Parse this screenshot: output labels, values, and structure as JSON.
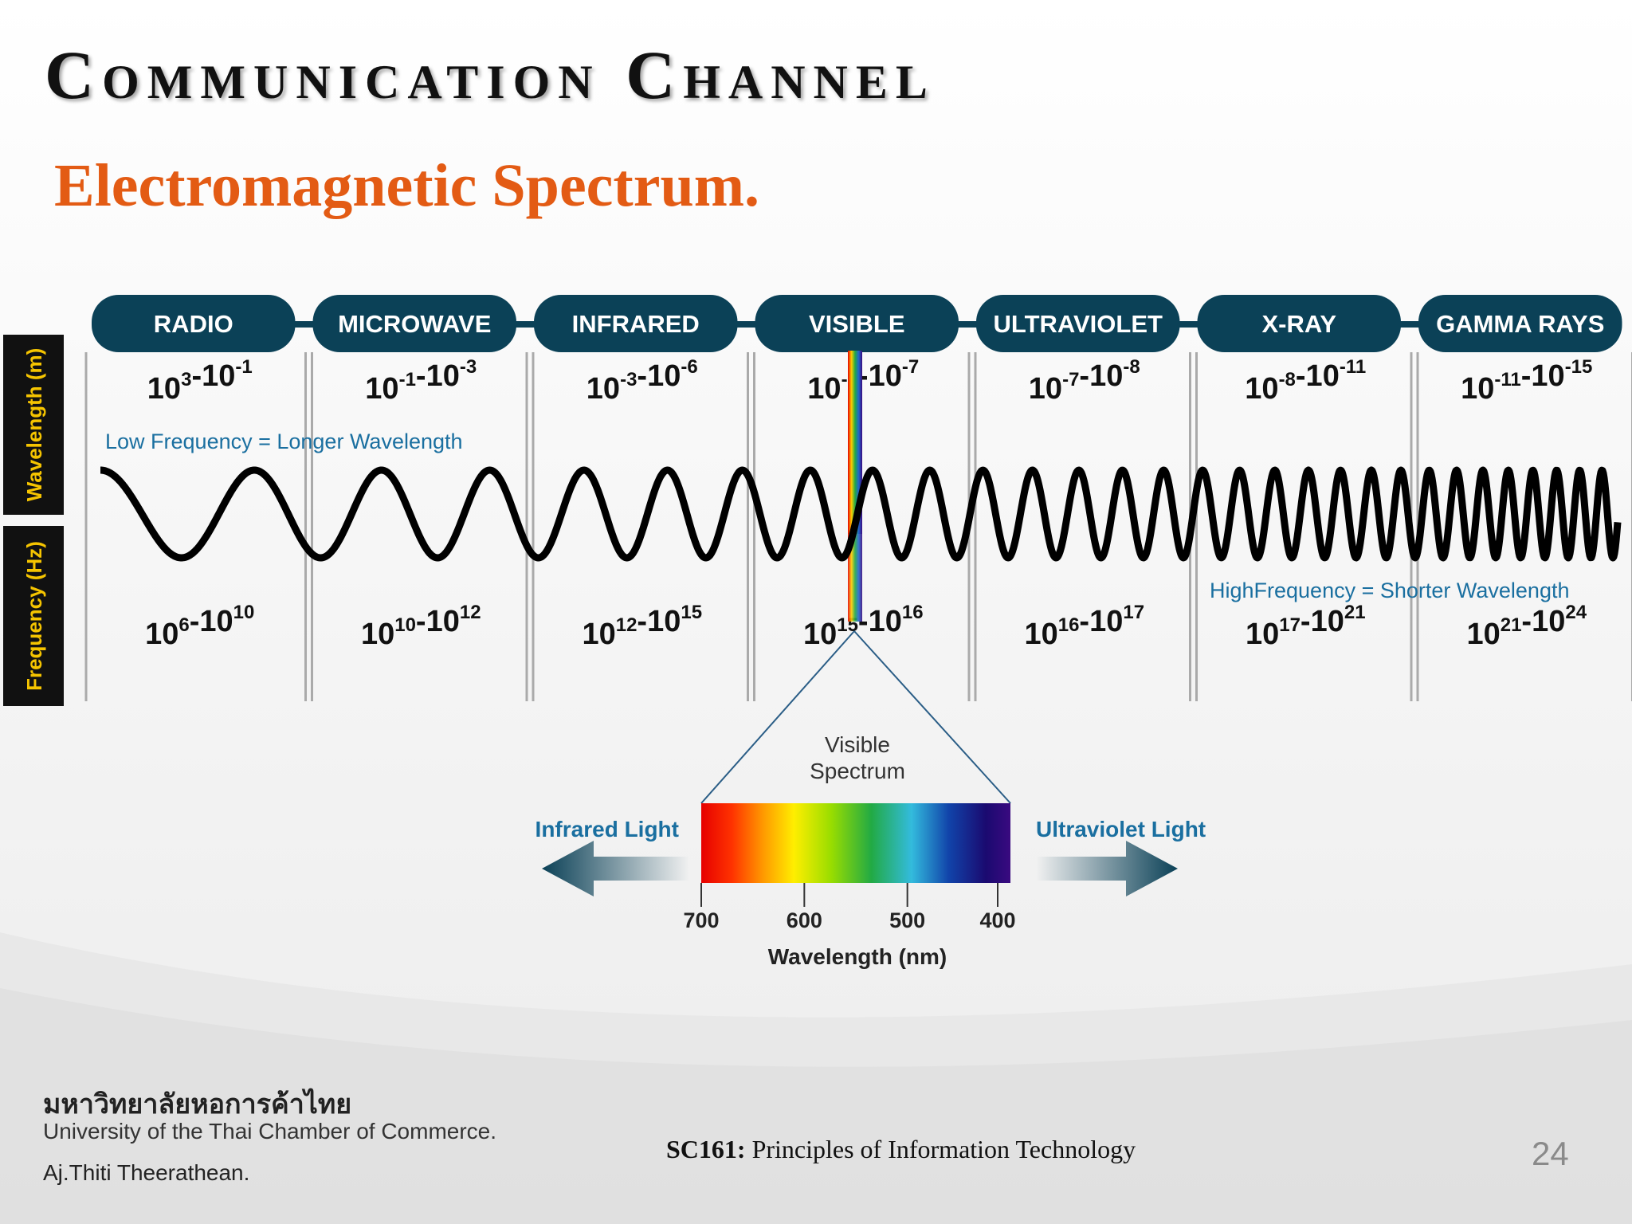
{
  "slide": {
    "title": "Communication Channel",
    "subtitle": "Electromagnetic Spectrum."
  },
  "diagram": {
    "wavelength_axis_label": "Wavelength (m)",
    "frequency_axis_label": "Frequency (Hz)",
    "low_frequency_note": "Low Frequency = Longer Wavelength",
    "high_frequency_note": "HighFrequency = Shorter Wavelength",
    "bands": [
      {
        "name": "RADIO",
        "wavelength": {
          "a": "3",
          "b": "-1"
        },
        "frequency": {
          "a": "6",
          "b": "10"
        }
      },
      {
        "name": "MICROWAVE",
        "wavelength": {
          "a": "-1",
          "b": "-3"
        },
        "frequency": {
          "a": "10",
          "b": "12"
        }
      },
      {
        "name": "INFRARED",
        "wavelength": {
          "a": "-3",
          "b": "-6"
        },
        "frequency": {
          "a": "12",
          "b": "15"
        }
      },
      {
        "name": "VISIBLE",
        "wavelength": {
          "a": "-6",
          "b": "-7"
        },
        "frequency": {
          "a": "15",
          "b": "16"
        }
      },
      {
        "name": "ULTRAVIOLET",
        "wavelength": {
          "a": "-7",
          "b": "-8"
        },
        "frequency": {
          "a": "16",
          "b": "17"
        }
      },
      {
        "name": "X-RAY",
        "wavelength": {
          "a": "-8",
          "b": "-11"
        },
        "frequency": {
          "a": "17",
          "b": "21"
        }
      },
      {
        "name": "GAMMA RAYS",
        "wavelength": {
          "a": "-11",
          "b": "-15"
        },
        "frequency": {
          "a": "21",
          "b": "24"
        }
      }
    ],
    "visible_spectrum": {
      "label_line1": "Visible",
      "label_line2": "Spectrum",
      "left_label": "Infrared Light",
      "right_label": "Ultraviolet Light",
      "axis_label": "Wavelength (nm)",
      "ticks": [
        "700",
        "600",
        "500",
        "400"
      ]
    }
  },
  "footer": {
    "university_thai": "มหาวิทยาลัยหอการค้าไทย",
    "university_en": "University of the Thai Chamber of Commerce.",
    "author": "Aj.Thiti   Theerathean.",
    "course_code": "SC161:",
    "course_name": " Principles of Information Technology",
    "page_number": "24"
  },
  "colors": {
    "title": "#111111",
    "subtitle": "#e35b14",
    "band_header": "#0b4157",
    "axis_label_bg": "#111111",
    "axis_label_text": "#f5c400",
    "note_text": "#1a6fa0"
  }
}
